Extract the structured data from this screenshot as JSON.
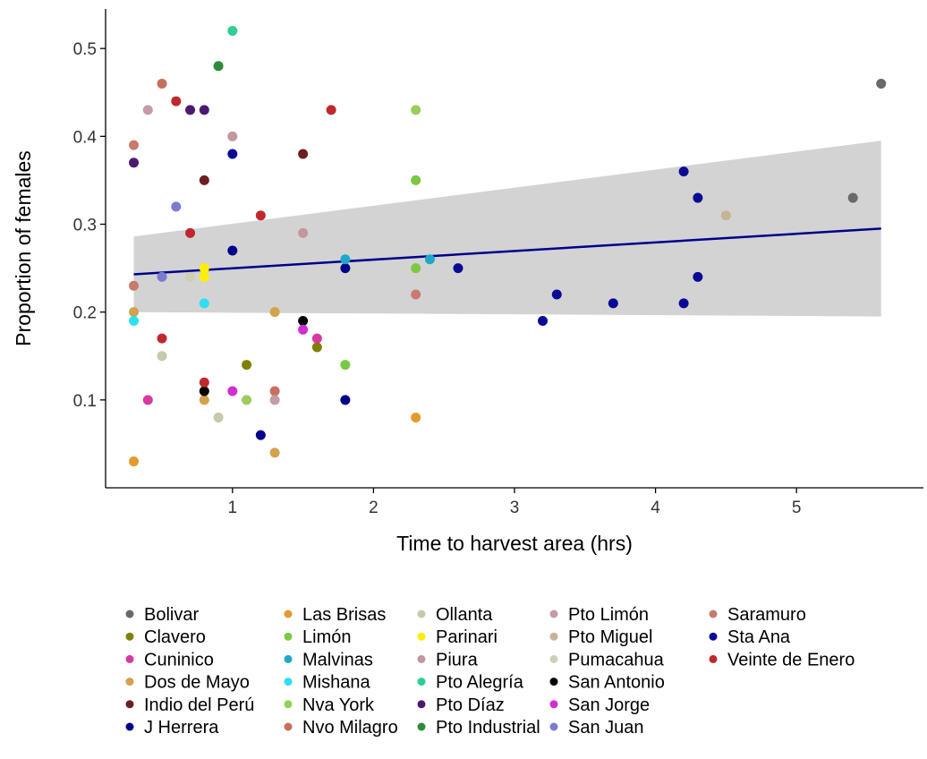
{
  "chart_data": {
    "type": "scatter",
    "title": "",
    "xlabel": "Time to harvest area (hrs)",
    "ylabel": "Proportion of females",
    "xlim": [
      0.1,
      5.9
    ],
    "ylim": [
      0.0,
      0.545
    ],
    "x_ticks": [
      1,
      2,
      3,
      4,
      5
    ],
    "y_ticks": [
      0.1,
      0.2,
      0.3,
      0.4,
      0.5
    ],
    "grid": false,
    "legend_position": "bottom",
    "trend_line": {
      "method": "linear",
      "color": "#00008B",
      "x": [
        0.3,
        5.6
      ],
      "y": [
        0.243,
        0.295
      ],
      "ci_upper": [
        0.286,
        0.395
      ],
      "ci_lower": [
        0.2,
        0.195
      ],
      "band_color": "#d3d3d3"
    },
    "series": [
      {
        "name": "Bolivar",
        "color": "#696969",
        "points": [
          [
            5.4,
            0.33
          ],
          [
            5.6,
            0.46
          ]
        ]
      },
      {
        "name": "Clavero",
        "color": "#808000",
        "points": [
          [
            1.1,
            0.14
          ],
          [
            1.6,
            0.16
          ]
        ]
      },
      {
        "name": "Cuninico",
        "color": "#d63aa0",
        "points": [
          [
            0.4,
            0.1
          ],
          [
            1.6,
            0.17
          ]
        ]
      },
      {
        "name": "Dos de Mayo",
        "color": "#d4a24c",
        "points": [
          [
            0.3,
            0.2
          ],
          [
            0.8,
            0.1
          ],
          [
            1.3,
            0.2
          ],
          [
            1.3,
            0.04
          ]
        ]
      },
      {
        "name": "Indio del Perú",
        "color": "#6b1f1f",
        "points": [
          [
            0.8,
            0.35
          ],
          [
            1.5,
            0.38
          ]
        ]
      },
      {
        "name": "J Herrera",
        "color": "#00008B",
        "points": [
          [
            1.0,
            0.27
          ],
          [
            1.2,
            0.06
          ],
          [
            1.8,
            0.1
          ],
          [
            1.8,
            0.25
          ]
        ]
      },
      {
        "name": "Las Brisas",
        "color": "#e69a2e",
        "points": [
          [
            0.3,
            0.03
          ],
          [
            2.3,
            0.08
          ]
        ]
      },
      {
        "name": "Limón",
        "color": "#7ac943",
        "points": [
          [
            1.8,
            0.14
          ],
          [
            2.3,
            0.25
          ],
          [
            2.3,
            0.35
          ]
        ]
      },
      {
        "name": "Malvinas",
        "color": "#1fa8c9",
        "points": [
          [
            1.8,
            0.26
          ],
          [
            2.4,
            0.26
          ]
        ]
      },
      {
        "name": "Mishana",
        "color": "#2de0f0",
        "points": [
          [
            0.3,
            0.19
          ],
          [
            0.8,
            0.21
          ]
        ]
      },
      {
        "name": "Nva York",
        "color": "#9acd5a",
        "points": [
          [
            1.1,
            0.1
          ],
          [
            2.3,
            0.43
          ]
        ]
      },
      {
        "name": "Nvo Milagro",
        "color": "#c86f5c",
        "points": [
          [
            0.5,
            0.46
          ],
          [
            1.3,
            0.11
          ]
        ]
      },
      {
        "name": "Ollanta",
        "color": "#c8c8aa",
        "points": [
          [
            0.5,
            0.15
          ],
          [
            0.9,
            0.08
          ]
        ]
      },
      {
        "name": "Parinari",
        "color": "#ffee00",
        "points": [
          [
            0.8,
            0.24
          ],
          [
            0.8,
            0.25
          ]
        ]
      },
      {
        "name": "Piura",
        "color": "#c4979e",
        "points": [
          [
            1.0,
            0.4
          ],
          [
            1.5,
            0.29
          ]
        ]
      },
      {
        "name": "Pto Alegría",
        "color": "#2ecf8f",
        "points": [
          [
            1.0,
            0.52
          ]
        ]
      },
      {
        "name": "Pto Díaz",
        "color": "#4b1a70",
        "points": [
          [
            0.3,
            0.37
          ],
          [
            0.7,
            0.43
          ],
          [
            0.8,
            0.43
          ]
        ]
      },
      {
        "name": "Pto Industrial",
        "color": "#2e8b3a",
        "points": [
          [
            0.9,
            0.48
          ]
        ]
      },
      {
        "name": "Pto Limón",
        "color": "#c69aa6",
        "points": [
          [
            0.4,
            0.43
          ],
          [
            1.3,
            0.1
          ]
        ]
      },
      {
        "name": "Pto Miguel",
        "color": "#c4b49a",
        "points": [
          [
            0.7,
            0.24
          ],
          [
            4.5,
            0.31
          ]
        ]
      },
      {
        "name": "Pumacahua",
        "color": "#cfcfb8",
        "points": [
          [
            0.7,
            0.24
          ]
        ]
      },
      {
        "name": "San Antonio",
        "color": "#000000",
        "points": [
          [
            0.8,
            0.11
          ],
          [
            1.5,
            0.19
          ]
        ]
      },
      {
        "name": "San Jorge",
        "color": "#d12ed1",
        "points": [
          [
            1.0,
            0.11
          ],
          [
            1.5,
            0.18
          ]
        ]
      },
      {
        "name": "San Juan",
        "color": "#7b7bd1",
        "points": [
          [
            0.5,
            0.24
          ],
          [
            0.6,
            0.32
          ]
        ]
      },
      {
        "name": "Saramuro",
        "color": "#c87a6e",
        "points": [
          [
            0.3,
            0.23
          ],
          [
            0.3,
            0.39
          ],
          [
            2.3,
            0.22
          ]
        ]
      },
      {
        "name": "Sta Ana",
        "color": "#0a0a96",
        "points": [
          [
            1.0,
            0.38
          ],
          [
            2.6,
            0.25
          ],
          [
            3.2,
            0.19
          ],
          [
            3.3,
            0.22
          ],
          [
            3.7,
            0.21
          ],
          [
            4.2,
            0.21
          ],
          [
            4.2,
            0.36
          ],
          [
            4.3,
            0.24
          ],
          [
            4.3,
            0.33
          ]
        ]
      },
      {
        "name": "Veinte de Enero",
        "color": "#c0282d",
        "points": [
          [
            0.5,
            0.17
          ],
          [
            0.6,
            0.44
          ],
          [
            0.7,
            0.29
          ],
          [
            0.8,
            0.12
          ],
          [
            1.2,
            0.31
          ],
          [
            1.7,
            0.43
          ]
        ]
      }
    ]
  }
}
